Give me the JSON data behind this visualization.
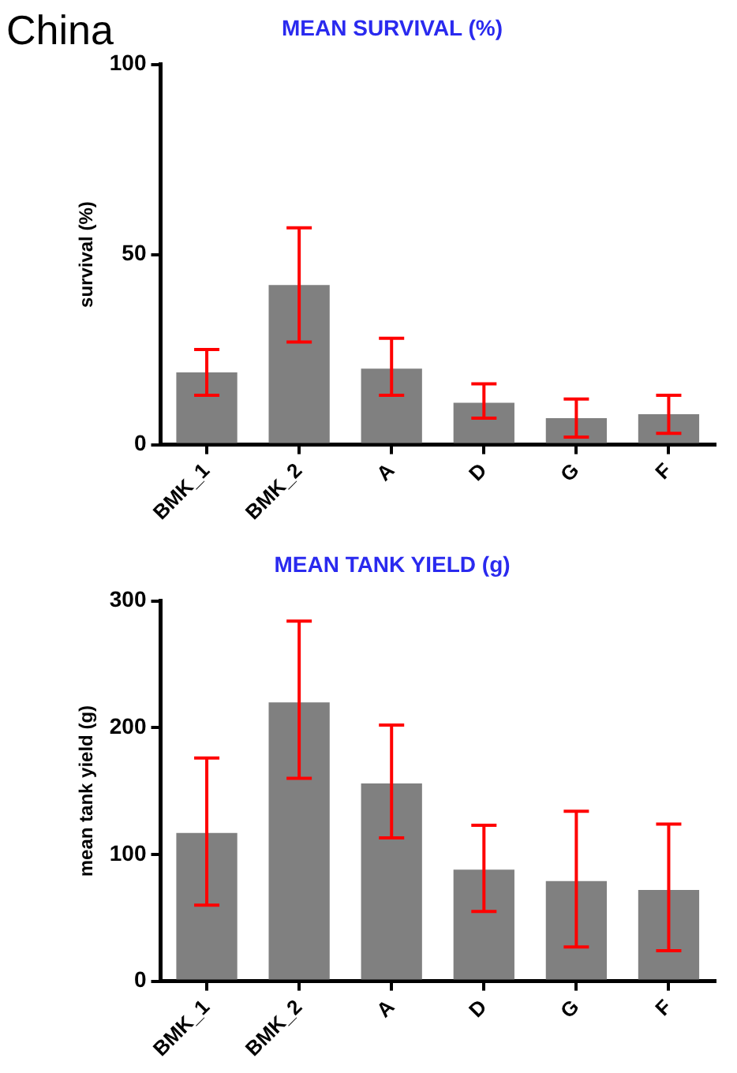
{
  "chart_data": [
    {
      "type": "bar",
      "title": "MEAN SURVIVAL (%)",
      "ylabel": "survival (%)",
      "annotations": [
        "China"
      ],
      "categories": [
        "BMK_1",
        "BMK_2",
        "A",
        "D",
        "G",
        "F"
      ],
      "values": [
        19,
        42,
        20,
        11,
        7,
        8
      ],
      "color": "#808080",
      "errors": [
        [
          13,
          25
        ],
        [
          27,
          57
        ],
        [
          13,
          28
        ],
        [
          7,
          16
        ],
        [
          2,
          12
        ],
        [
          3,
          13
        ]
      ],
      "ylim": [
        0,
        100
      ],
      "yticks": [
        0,
        50,
        100
      ],
      "grid": false,
      "legend": false
    },
    {
      "type": "bar",
      "title": "MEAN TANK YIELD (g)",
      "ylabel": "mean tank yield (g)",
      "categories": [
        "BMK_1",
        "BMK_2",
        "A",
        "D",
        "G",
        "F"
      ],
      "values": [
        117,
        220,
        156,
        88,
        79,
        72
      ],
      "color": "#808080",
      "errors": [
        [
          60,
          176
        ],
        [
          160,
          284
        ],
        [
          113,
          202
        ],
        [
          55,
          123
        ],
        [
          27,
          134
        ],
        [
          24,
          124
        ]
      ],
      "ylim": [
        0,
        300
      ],
      "yticks": [
        0,
        100,
        200,
        300
      ],
      "grid": false,
      "legend": false
    }
  ]
}
